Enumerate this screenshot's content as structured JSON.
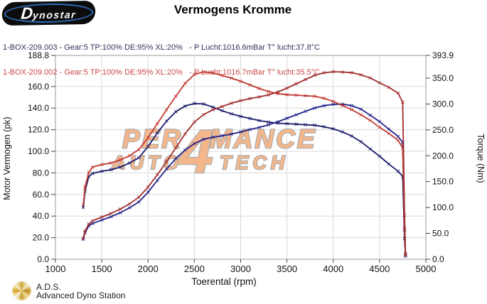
{
  "header": {
    "brand_initial": "D",
    "brand_rest": "ynostar",
    "title": "Vermogens Kromme"
  },
  "runs": [
    {
      "label": "1-BOX-209.003 - Gear:5 TP:100% DE:95% XL:20%   - P Lucht:1016.6mBar T° lucht:37.8°C",
      "color": "#32325e"
    },
    {
      "label": "1-BOX-209.002 - Gear:5 TP:100% DE:95% XL:20%   - P Lucht:1016.7mBar T° lucht:35.5°C",
      "color": "#cb4848"
    }
  ],
  "watermark": {
    "line1_left": "PER",
    "big_digit": "4",
    "line1_right": "MANCE",
    "line2_left": "AUTO",
    "line2_right": "TECH",
    "fill_color": "#f4b283",
    "outline_color": "#a8a8a8"
  },
  "footer": {
    "abbr": "A.D.S.",
    "name": "Advanced Dyno Station"
  },
  "chart_data": {
    "type": "line",
    "title": "Vermogens Kromme",
    "xlabel": "Toerental (rpm)",
    "ylabel_left": "Motor Vermogen (pk)",
    "ylabel_right": "Torque (Nm)",
    "grid": true,
    "xlim": [
      1000,
      5000
    ],
    "ylim_left": [
      0,
      188.8
    ],
    "ylim_right": [
      0,
      393.9
    ],
    "x_ticks": [
      1000,
      1500,
      2000,
      2500,
      3000,
      3500,
      4000,
      4500,
      5000
    ],
    "y_ticks_left": [
      188.8,
      160.0,
      140.0,
      120.0,
      100.0,
      80.0,
      60.0,
      40.0,
      20.0,
      0.0
    ],
    "y_ticks_right": [
      393.9,
      350.0,
      300.0,
      250.0,
      200.0,
      150.0,
      100.0,
      50.0,
      0.0
    ],
    "x": [
      1300,
      1320,
      1360,
      1400,
      1500,
      1600,
      1700,
      1800,
      1900,
      2000,
      2100,
      2200,
      2300,
      2400,
      2500,
      2600,
      2700,
      2800,
      2900,
      3000,
      3100,
      3200,
      3300,
      3400,
      3500,
      3600,
      3700,
      3800,
      3900,
      4000,
      4100,
      4200,
      4300,
      4400,
      4500,
      4600,
      4700,
      4750,
      4770,
      4780
    ],
    "series": [
      {
        "run": "1-BOX-209.003",
        "quantity": "torque",
        "axis": "right",
        "unit": "Nm",
        "color": "#1a1a6b",
        "values": [
          100,
          132,
          160,
          166,
          170,
          173,
          178,
          186,
          196,
          218,
          244,
          267,
          285,
          296,
          301,
          300,
          294,
          287,
          281,
          276,
          272,
          268,
          265,
          263,
          262,
          261,
          260,
          259,
          256,
          252,
          246,
          238,
          227,
          213,
          199,
          184,
          170,
          160,
          40,
          6
        ]
      },
      {
        "run": "1-BOX-209.003",
        "quantity": "power",
        "axis": "left",
        "unit": "pk",
        "color": "#22228a",
        "values": [
          18.5,
          24.8,
          31.0,
          33.1,
          36.3,
          39.4,
          43.1,
          47.7,
          53.0,
          62.1,
          73.0,
          83.6,
          93.3,
          101.2,
          107.1,
          111.1,
          113.0,
          114.4,
          116.0,
          117.9,
          120.1,
          122.1,
          124.5,
          127.3,
          130.6,
          133.8,
          137.0,
          140.1,
          142.2,
          143.5,
          143.6,
          142.3,
          139.0,
          133.4,
          127.5,
          120.5,
          113.8,
          108.2,
          27.2,
          4.1
        ]
      },
      {
        "run": "1-BOX-209.002",
        "quantity": "torque",
        "axis": "right",
        "unit": "Nm",
        "color": "#c23a31",
        "values": [
          105,
          140,
          168,
          178,
          183,
          186,
          192,
          200,
          212,
          235,
          262,
          289,
          315,
          340,
          357,
          362,
          360,
          355,
          350,
          344,
          337,
          330,
          324,
          320,
          318,
          317,
          316,
          315,
          311,
          305,
          297,
          289,
          279,
          268,
          255,
          243,
          230,
          215,
          60,
          8
        ]
      },
      {
        "run": "1-BOX-209.002",
        "quantity": "power",
        "axis": "left",
        "unit": "pk",
        "color": "#a02d2d",
        "values": [
          19.4,
          26.3,
          32.5,
          35.5,
          39.1,
          42.4,
          46.5,
          51.3,
          57.4,
          66.9,
          78.3,
          90.5,
          103.2,
          116.2,
          127.1,
          134.0,
          138.4,
          141.5,
          144.5,
          146.9,
          148.8,
          150.4,
          152.2,
          154.9,
          158.5,
          162.5,
          166.5,
          170.4,
          172.7,
          173.7,
          173.4,
          172.8,
          170.8,
          167.9,
          163.4,
          159.2,
          153.9,
          145.4,
          40.8,
          5.4
        ]
      }
    ]
  }
}
